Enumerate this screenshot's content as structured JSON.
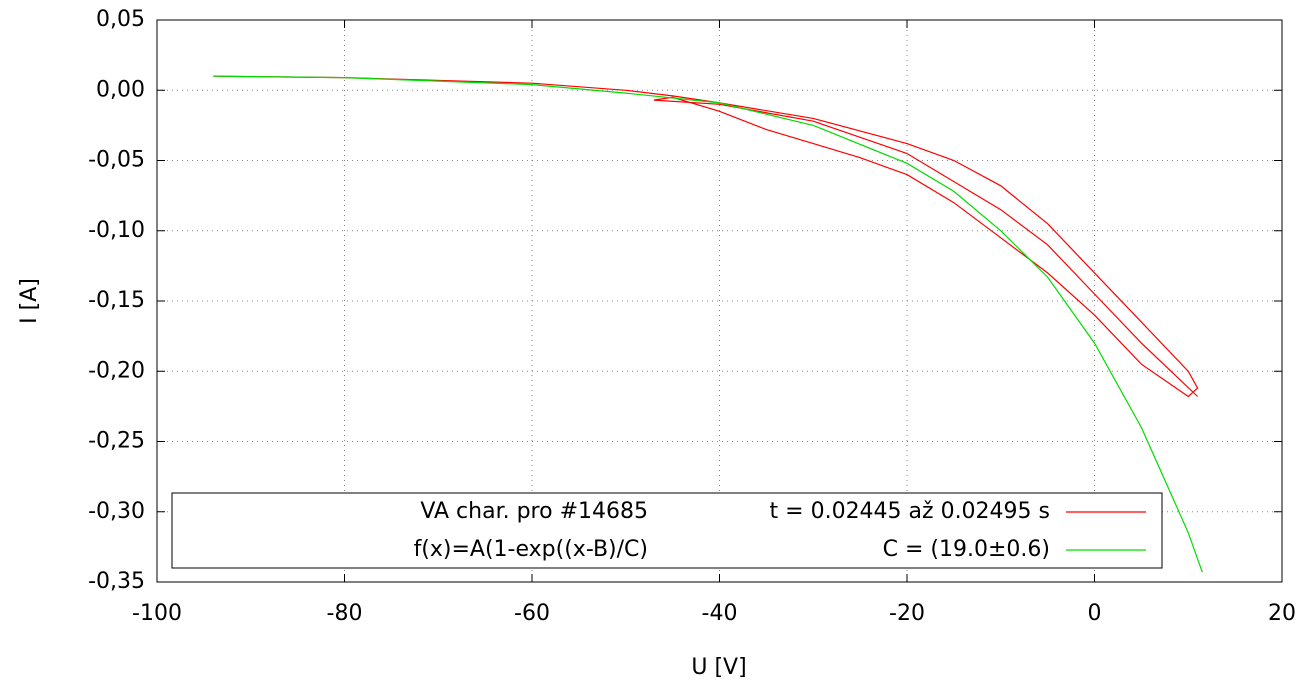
{
  "chart_data": {
    "type": "line",
    "xlabel": "U [V]",
    "ylabel": "I [A]",
    "xlim": [
      -100,
      20
    ],
    "xticks": [
      -100,
      -80,
      -60,
      -40,
      -20,
      0,
      20
    ],
    "ylim": [
      -0.35,
      0.05
    ],
    "yticks": [
      {
        "value": -0.35,
        "label": "-0,35"
      },
      {
        "value": -0.3,
        "label": "-0,30"
      },
      {
        "value": -0.25,
        "label": "-0,25"
      },
      {
        "value": -0.2,
        "label": "-0,20"
      },
      {
        "value": -0.15,
        "label": "-0,15"
      },
      {
        "value": -0.1,
        "label": "-0,10"
      },
      {
        "value": -0.05,
        "label": "-0,05"
      },
      {
        "value": 0,
        "label": "0,00"
      },
      {
        "value": 0.05,
        "label": "0,05"
      }
    ],
    "grid": true,
    "legend_notes": [
      "VA char. pro #14685",
      "f(x)=A(1-exp((x-B)/C)"
    ],
    "series": [
      {
        "name": "t = 0.02445 až 0.02495 s",
        "color": "#ff0000",
        "x": [
          -94,
          -80,
          -60,
          -50,
          -45,
          -40,
          -30,
          -20,
          -15,
          -10,
          -5,
          0,
          5,
          10,
          11,
          10,
          5,
          0,
          -5,
          -10,
          -15,
          -20,
          -25,
          -30,
          -35,
          -40,
          -45,
          -47,
          -40,
          -30,
          -20,
          -10,
          -5,
          0,
          5,
          11
        ],
        "values": [
          0.01,
          0.009,
          0.005,
          0.0,
          -0.004,
          -0.009,
          -0.02,
          -0.038,
          -0.05,
          -0.068,
          -0.095,
          -0.13,
          -0.165,
          -0.2,
          -0.212,
          -0.218,
          -0.195,
          -0.16,
          -0.13,
          -0.105,
          -0.08,
          -0.06,
          -0.048,
          -0.038,
          -0.028,
          -0.015,
          -0.005,
          -0.007,
          -0.01,
          -0.022,
          -0.045,
          -0.085,
          -0.11,
          -0.145,
          -0.18,
          -0.218
        ]
      },
      {
        "name": "C = (19.0±0.6)",
        "color": "#00dd00",
        "x": [
          -94,
          -80,
          -60,
          -50,
          -40,
          -30,
          -20,
          -15,
          -10,
          -5,
          0,
          5,
          10,
          11.5
        ],
        "values": [
          0.01,
          0.009,
          0.004,
          -0.002,
          -0.009,
          -0.025,
          -0.052,
          -0.072,
          -0.1,
          -0.133,
          -0.18,
          -0.24,
          -0.315,
          -0.343
        ]
      }
    ]
  }
}
